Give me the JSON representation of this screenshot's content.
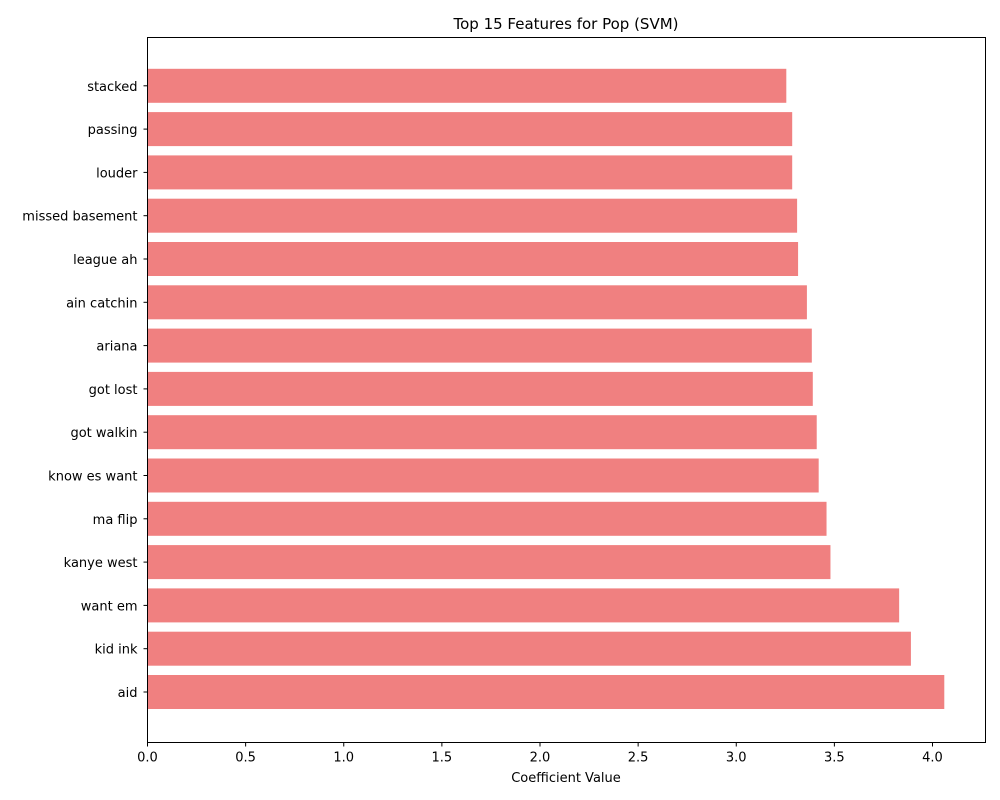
{
  "chart_data": {
    "type": "bar",
    "orientation": "horizontal",
    "title": "Top 15 Features for Pop (SVM)",
    "xlabel": "Coefficient Value",
    "ylabel": "",
    "xlim": [
      0,
      4.27
    ],
    "x_ticks": [
      "0.0",
      "0.5",
      "1.0",
      "1.5",
      "2.0",
      "2.5",
      "3.0",
      "3.5",
      "4.0"
    ],
    "categories": [
      "aid",
      "kid ink",
      "want em",
      "kanye west",
      "ma flip",
      "know es want",
      "got walkin",
      "got lost",
      "ariana",
      "ain catchin",
      "league ah",
      "missed basement",
      "louder",
      "passing",
      "stacked"
    ],
    "values": [
      4.06,
      3.89,
      3.83,
      3.48,
      3.46,
      3.42,
      3.41,
      3.39,
      3.385,
      3.36,
      3.315,
      3.31,
      3.285,
      3.285,
      3.255
    ],
    "bar_color": "#f08080",
    "grid": false,
    "legend": "none"
  }
}
